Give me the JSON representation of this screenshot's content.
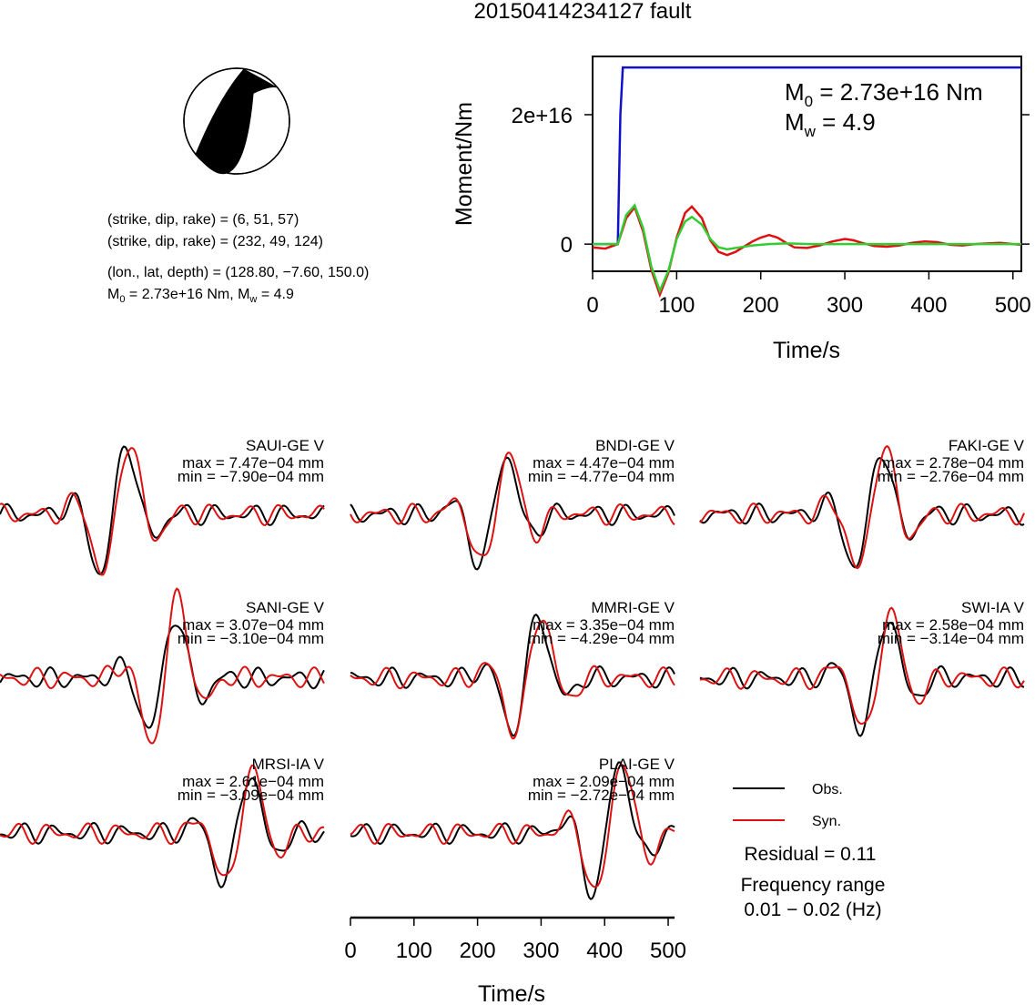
{
  "title": "20150414234127 fault",
  "mechanism": {
    "line1": "(strike, dip, rake) = (6, 51, 57)",
    "line2": "(strike, dip, rake) = (232, 49, 124)",
    "line3": "(lon., lat, depth) = (128.80, −7.60, 150.0)",
    "line4_m0_prefix": "M",
    "line4_m0_sub": "0",
    "line4_m0_value": " = 2.73e+16 Nm, M",
    "line4_mw_sub": "w",
    "line4_mw_value": " = 4.9"
  },
  "colors": {
    "observed": "#000000",
    "synthetic": "#dd1111",
    "moment_cumulative": "#1111cc",
    "moment_rate_fit": "#33cc33"
  },
  "chart_data": [
    {
      "type": "line",
      "id": "moment-function",
      "title": "",
      "xlabel": "Time/s",
      "ylabel": "Moment/Nm",
      "xlim": [
        0,
        510
      ],
      "ylim": [
        -4200000000000000.0,
        2.9e+16
      ],
      "x_ticks": [
        0,
        100,
        200,
        300,
        400,
        500
      ],
      "y_ticks": [
        {
          "value": 0,
          "label": "0"
        },
        {
          "value": 2e+16,
          "label": "2e+16"
        }
      ],
      "annotation": {
        "m0_prefix": "M",
        "m0_sub": "0",
        "m0_value": " = 2.73e+16 Nm",
        "mw_prefix": "M",
        "mw_sub": "w",
        "mw_value": " = 4.9"
      },
      "series": [
        {
          "color": "#1111cc",
          "x": [
            0,
            30,
            33,
            36,
            510
          ],
          "y": [
            0,
            0,
            2e+16,
            2.73e+16,
            2.73e+16
          ]
        },
        {
          "color": "#dd1111",
          "x": [
            0,
            15,
            30,
            40,
            50,
            60,
            70,
            80,
            90,
            100,
            110,
            118,
            130,
            140,
            150,
            160,
            170,
            180,
            190,
            200,
            210,
            220,
            230,
            240,
            255,
            270,
            285,
            300,
            310,
            320,
            335,
            350,
            365,
            380,
            395,
            410,
            425,
            440,
            455,
            470,
            485,
            500,
            510
          ],
          "y": [
            -500000000000000.0,
            -700000000000000.0,
            0,
            4000000000000000.0,
            5700000000000000.0,
            2000000000000000.0,
            -4000000000000000.0,
            -7800000000000000.0,
            -4500000000000000.0,
            1000000000000000.0,
            4800000000000000.0,
            5800000000000000.0,
            4000000000000000.0,
            600000000000000.0,
            -1200000000000000.0,
            -1700000000000000.0,
            -1200000000000000.0,
            -400000000000000.0,
            400000000000000.0,
            1000000000000000.0,
            1400000000000000.0,
            1000000000000000.0,
            200000000000000.0,
            -500000000000000.0,
            -600000000000000.0,
            -200000000000000.0,
            400000000000000.0,
            800000000000000.0,
            600000000000000.0,
            200000000000000.0,
            -300000000000000.0,
            -400000000000000.0,
            -200000000000000.0,
            200000000000000.0,
            400000000000000.0,
            300000000000000.0,
            -100000000000000.0,
            -200000000000000.0,
            0,
            100000000000000.0,
            200000000000000.0,
            0,
            -100000000000000.0
          ]
        },
        {
          "color": "#33cc33",
          "x": [
            0,
            30,
            40,
            50,
            60,
            70,
            80,
            90,
            100,
            110,
            118,
            130,
            140,
            150,
            160,
            175,
            190,
            210,
            230,
            260,
            300,
            510
          ],
          "y": [
            0,
            0,
            4500000000000000.0,
            6000000000000000.0,
            2500000000000000.0,
            -3500000000000000.0,
            -7200000000000000.0,
            -4200000000000000.0,
            800000000000000.0,
            3500000000000000.0,
            4200000000000000.0,
            3000000000000000.0,
            800000000000000.0,
            -500000000000000.0,
            -800000000000000.0,
            -500000000000000.0,
            -200000000000000.0,
            0,
            100000000000000.0,
            0,
            0,
            0
          ]
        }
      ]
    },
    {
      "type": "line",
      "id": "waveforms",
      "xlabel": "Time/s",
      "xlim": [
        0,
        510
      ],
      "x_ticks": [
        0,
        100,
        200,
        300,
        400,
        500
      ],
      "legend": {
        "observed": "Obs.",
        "synthetic": "Syn."
      },
      "residual": "Residual = 0.11",
      "frequency_title": "Frequency range",
      "frequency_range": "0.01 − 0.02 (Hz)",
      "stations": [
        {
          "name": "SAUI-GE V",
          "max": "max = 7.47e−04 mm",
          "min": "min = −7.90e−04 mm"
        },
        {
          "name": "BNDI-GE V",
          "max": "max = 4.47e−04 mm",
          "min": "min = −4.77e−04 mm"
        },
        {
          "name": "FAKI-GE V",
          "max": "max = 2.78e−04 mm",
          "min": "min = −2.76e−04 mm"
        },
        {
          "name": "SANI-GE V",
          "max": "max = 3.07e−04 mm",
          "min": "min = −3.10e−04 mm"
        },
        {
          "name": "MMRI-GE V",
          "max": "max = 3.35e−04 mm",
          "min": "min = −4.29e−04 mm"
        },
        {
          "name": "SWI-IA V",
          "max": "max = 2.58e−04 mm",
          "min": "min = −3.14e−04 mm"
        },
        {
          "name": "MRSI-IA V",
          "max": "max = 2.61e−04 mm",
          "min": "min = −3.09e−04 mm"
        },
        {
          "name": "PLAI-GE V",
          "max": "max = 2.09e−04 mm",
          "min": "min = −2.72e−04 mm"
        }
      ]
    }
  ]
}
